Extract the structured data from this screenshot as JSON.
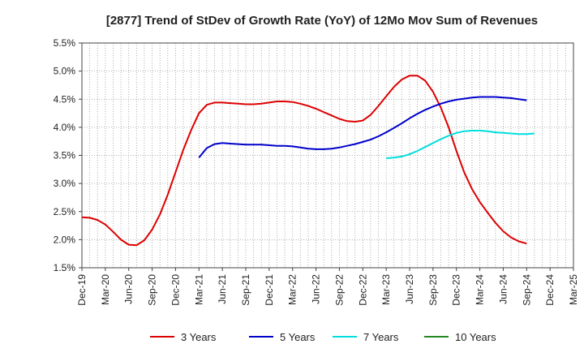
{
  "chart_data": {
    "type": "line",
    "title": "[2877]  Trend of StDev of Growth Rate (YoY) of 12Mo Mov Sum of Revenues",
    "xlabel": "",
    "ylabel": "",
    "ylim": [
      1.5,
      5.5
    ],
    "y_ticks": [
      1.5,
      2.0,
      2.5,
      3.0,
      3.5,
      4.0,
      4.5,
      5.0,
      5.5
    ],
    "y_tick_labels": [
      "1.5%",
      "2.0%",
      "2.5%",
      "3.0%",
      "3.5%",
      "4.0%",
      "4.5%",
      "5.0%",
      "5.5%"
    ],
    "x_tick_labels": [
      "Dec-19",
      "Mar-20",
      "Jun-20",
      "Sep-20",
      "Dec-20",
      "Mar-21",
      "Jun-21",
      "Sep-21",
      "Dec-21",
      "Mar-22",
      "Jun-22",
      "Sep-22",
      "Dec-22",
      "Mar-23",
      "Jun-23",
      "Sep-23",
      "Dec-23",
      "Mar-24",
      "Jun-24",
      "Sep-24",
      "Dec-24",
      "Mar-25"
    ],
    "x_range_months": [
      0,
      63
    ],
    "grid": true,
    "legend_position": "bottom",
    "series": [
      {
        "name": "3 Years",
        "color": "#dd0000",
        "points": [
          [
            0,
            2.4
          ],
          [
            1,
            2.39
          ],
          [
            2,
            2.35
          ],
          [
            3,
            2.27
          ],
          [
            4,
            2.14
          ],
          [
            5,
            2.0
          ],
          [
            6,
            1.91
          ],
          [
            7,
            1.9
          ],
          [
            8,
            1.99
          ],
          [
            9,
            2.18
          ],
          [
            10,
            2.45
          ],
          [
            11,
            2.8
          ],
          [
            12,
            3.2
          ],
          [
            13,
            3.6
          ],
          [
            14,
            3.95
          ],
          [
            15,
            4.25
          ],
          [
            16,
            4.4
          ],
          [
            17,
            4.44
          ],
          [
            18,
            4.44
          ],
          [
            19,
            4.43
          ],
          [
            20,
            4.42
          ],
          [
            21,
            4.41
          ],
          [
            22,
            4.41
          ],
          [
            23,
            4.42
          ],
          [
            24,
            4.44
          ],
          [
            25,
            4.46
          ],
          [
            26,
            4.46
          ],
          [
            27,
            4.45
          ],
          [
            28,
            4.42
          ],
          [
            29,
            4.38
          ],
          [
            30,
            4.33
          ],
          [
            31,
            4.27
          ],
          [
            32,
            4.21
          ],
          [
            33,
            4.15
          ],
          [
            34,
            4.11
          ],
          [
            35,
            4.1
          ],
          [
            36,
            4.12
          ],
          [
            37,
            4.22
          ],
          [
            38,
            4.38
          ],
          [
            39,
            4.55
          ],
          [
            40,
            4.72
          ],
          [
            41,
            4.85
          ],
          [
            42,
            4.92
          ],
          [
            43,
            4.92
          ],
          [
            44,
            4.83
          ],
          [
            45,
            4.63
          ],
          [
            46,
            4.35
          ],
          [
            47,
            4.0
          ],
          [
            48,
            3.58
          ],
          [
            49,
            3.2
          ],
          [
            50,
            2.9
          ],
          [
            51,
            2.67
          ],
          [
            52,
            2.48
          ],
          [
            53,
            2.3
          ],
          [
            54,
            2.15
          ],
          [
            55,
            2.04
          ],
          [
            56,
            1.97
          ],
          [
            57,
            1.93
          ]
        ]
      },
      {
        "name": "5 Years",
        "color": "#0000cc",
        "points": [
          [
            15,
            3.46
          ],
          [
            16,
            3.63
          ],
          [
            17,
            3.7
          ],
          [
            18,
            3.72
          ],
          [
            19,
            3.71
          ],
          [
            20,
            3.7
          ],
          [
            21,
            3.69
          ],
          [
            22,
            3.69
          ],
          [
            23,
            3.69
          ],
          [
            24,
            3.68
          ],
          [
            25,
            3.67
          ],
          [
            26,
            3.67
          ],
          [
            27,
            3.66
          ],
          [
            28,
            3.64
          ],
          [
            29,
            3.62
          ],
          [
            30,
            3.61
          ],
          [
            31,
            3.61
          ],
          [
            32,
            3.62
          ],
          [
            33,
            3.64
          ],
          [
            34,
            3.67
          ],
          [
            35,
            3.7
          ],
          [
            36,
            3.74
          ],
          [
            37,
            3.78
          ],
          [
            38,
            3.84
          ],
          [
            39,
            3.91
          ],
          [
            40,
            3.99
          ],
          [
            41,
            4.07
          ],
          [
            42,
            4.16
          ],
          [
            43,
            4.24
          ],
          [
            44,
            4.31
          ],
          [
            45,
            4.37
          ],
          [
            46,
            4.42
          ],
          [
            47,
            4.46
          ],
          [
            48,
            4.49
          ],
          [
            49,
            4.51
          ],
          [
            50,
            4.53
          ],
          [
            51,
            4.54
          ],
          [
            52,
            4.54
          ],
          [
            53,
            4.54
          ],
          [
            54,
            4.53
          ],
          [
            55,
            4.52
          ],
          [
            56,
            4.5
          ],
          [
            57,
            4.48
          ]
        ]
      },
      {
        "name": "7 Years",
        "color": "#00dddd",
        "points": [
          [
            39,
            3.45
          ],
          [
            40,
            3.46
          ],
          [
            41,
            3.48
          ],
          [
            42,
            3.52
          ],
          [
            43,
            3.58
          ],
          [
            44,
            3.65
          ],
          [
            45,
            3.72
          ],
          [
            46,
            3.79
          ],
          [
            47,
            3.85
          ],
          [
            48,
            3.9
          ],
          [
            49,
            3.93
          ],
          [
            50,
            3.94
          ],
          [
            51,
            3.94
          ],
          [
            52,
            3.93
          ],
          [
            53,
            3.91
          ],
          [
            54,
            3.9
          ],
          [
            55,
            3.89
          ],
          [
            56,
            3.88
          ],
          [
            57,
            3.88
          ],
          [
            58,
            3.89
          ]
        ]
      },
      {
        "name": "10 Years",
        "color": "#228822",
        "points": []
      }
    ]
  }
}
